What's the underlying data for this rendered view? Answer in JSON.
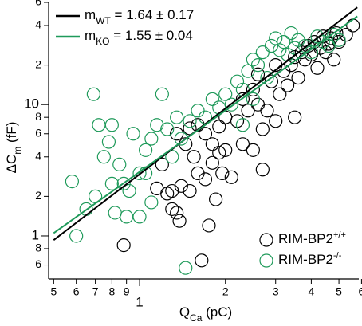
{
  "chart_data": {
    "type": "scatter",
    "log_x": true,
    "log_y": true,
    "xlim": [
      0.48,
      5.87
    ],
    "ylim": [
      0.47,
      60
    ],
    "xticks": [
      {
        "value": 0.5,
        "label": "5"
      },
      {
        "value": 0.6,
        "label": "6"
      },
      {
        "value": 0.7,
        "label": "7"
      },
      {
        "value": 0.8,
        "label": "8"
      },
      {
        "value": 0.9,
        "label": "9"
      },
      1,
      2,
      3,
      4,
      5,
      6
    ],
    "yticks": [
      {
        "value": 0.6,
        "label": "6"
      },
      {
        "value": 0.8,
        "label": "8"
      },
      1,
      2,
      4,
      6,
      8,
      10,
      {
        "value": 20,
        "label": "2"
      },
      {
        "value": 40,
        "label": "4"
      },
      {
        "value": 60,
        "label": "6"
      }
    ],
    "x_label": {
      "main": "Q",
      "sub": "Ca",
      "rest": " (pC)"
    },
    "y_label": {
      "main": "ΔC",
      "sub": "m",
      "rest": " (fF)"
    },
    "fits": [
      {
        "label": "m",
        "sub": "WT",
        "text": " = 1.64 ± 0.17",
        "color": "#000000",
        "x": [
          0.5,
          5.8
        ],
        "y": [
          0.93,
          55
        ]
      },
      {
        "label": "m",
        "sub": "KO",
        "text": " = 1.55 ± 0.04",
        "color": "#1f9a5a",
        "x": [
          0.5,
          5.8
        ],
        "y": [
          1.05,
          47
        ]
      }
    ],
    "series": [
      {
        "name": "RIM-BP2",
        "sup": "+/+",
        "color": "#000000",
        "x": [
          0.88,
          1.35,
          1.38,
          1.65,
          1.3,
          1.15,
          1.2,
          1.25,
          1.4,
          1.5,
          1.55,
          1.6,
          1.7,
          1.8,
          1.9,
          2.0,
          1.95,
          2.1,
          1.75,
          1.85,
          1.35,
          1.45,
          1.5,
          1.6,
          1.7,
          1.8,
          1.9,
          2.0,
          2.2,
          2.3,
          2.4,
          2.5,
          2.6,
          2.7,
          2.8,
          2.9,
          3.0,
          3.1,
          3.2,
          3.3,
          3.4,
          3.5,
          3.6,
          3.7,
          3.8,
          3.9,
          4.0,
          4.1,
          4.2,
          4.3,
          4.4,
          4.5,
          4.6,
          4.7,
          4.8,
          4.9,
          5.0,
          5.3,
          5.6,
          3.0,
          2.6,
          3.5,
          2.3,
          2.5,
          2.7,
          1.3
        ],
        "values": [
          0.85,
          1.5,
          1.3,
          0.65,
          2.2,
          2.3,
          3.5,
          2.1,
          2.4,
          2.2,
          4.0,
          3.0,
          2.7,
          3.6,
          4.3,
          4.5,
          3.0,
          2.8,
          1.2,
          1.9,
          6.0,
          5.0,
          6.6,
          7.0,
          6.0,
          5.0,
          6.8,
          8.0,
          7.5,
          11,
          9,
          13,
          10,
          6.5,
          9,
          15,
          7.5,
          12,
          18,
          14,
          20,
          23,
          16,
          25,
          22,
          28,
          24,
          30,
          19,
          27,
          33,
          25,
          29,
          32,
          22,
          35,
          30,
          34,
          40,
          20,
          17,
          8,
          5,
          4.5,
          3.2,
          1.6
        ]
      },
      {
        "name": "RIM-BP2",
        "sup": "-/-",
        "color": "#1f9a5a",
        "x": [
          0.69,
          0.58,
          0.6,
          0.65,
          0.7,
          0.72,
          0.75,
          0.78,
          0.8,
          0.82,
          0.85,
          0.9,
          0.92,
          0.95,
          1.0,
          1.05,
          1.1,
          1.1,
          1.15,
          1.2,
          1.25,
          1.3,
          1.35,
          1.4,
          1.45,
          1.5,
          1.6,
          1.7,
          1.8,
          1.9,
          2.0,
          2.1,
          2.2,
          2.3,
          2.4,
          2.5,
          2.6,
          2.7,
          2.8,
          2.9,
          3.0,
          3.1,
          3.2,
          3.3,
          3.4,
          3.5,
          3.6,
          3.8,
          4.0,
          4.2,
          4.4,
          4.6,
          4.8,
          5.0,
          1.0,
          0.8,
          1.05,
          2.3,
          2.5,
          0.88
        ],
        "values": [
          12,
          2.6,
          1.0,
          1.6,
          2.0,
          7.0,
          4.0,
          5.2,
          2.5,
          1.5,
          3.5,
          1.4,
          2.2,
          6.0,
          3.0,
          4.5,
          5.5,
          1.8,
          7.0,
          12,
          6.5,
          4.0,
          8.0,
          5.5,
          0.57,
          7.5,
          9.0,
          8.0,
          11,
          9.5,
          12,
          10,
          15,
          13,
          18,
          22,
          20,
          25,
          16,
          28,
          32,
          26,
          30,
          24,
          35,
          27,
          31,
          28,
          25,
          33,
          30,
          28,
          34,
          31,
          1.4,
          7.0,
          3.0,
          7.0,
          11,
          2.5
        ]
      }
    ]
  }
}
